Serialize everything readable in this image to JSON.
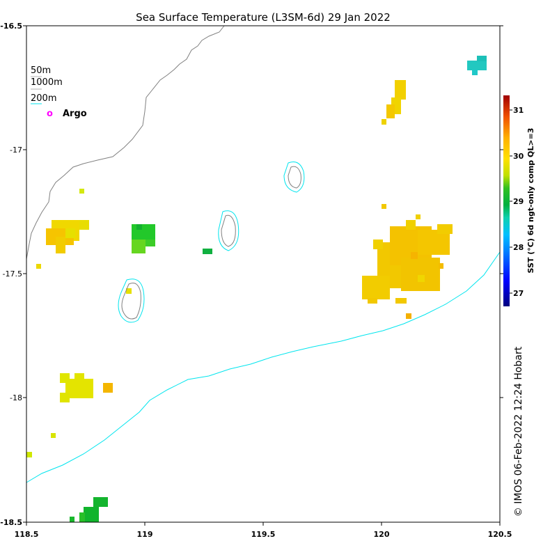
{
  "title": "Sea Surface Temperature (L3SM-6d) 29 Jan 2022",
  "axes": {
    "x_ticks": [
      "118.5",
      "119",
      "119.5",
      "120",
      "120.5"
    ],
    "y_ticks": [
      "-16.5",
      "-17",
      "-17.5",
      "-18",
      "-18.5"
    ],
    "x_range": [
      118.5,
      120.5
    ],
    "y_range": [
      -18.5,
      -16.5
    ]
  },
  "legend": {
    "items": [
      "50m",
      "1000m",
      "200m"
    ],
    "argo_marker": "o",
    "argo_label": "Argo",
    "argo_color": "#ff00ff",
    "contour_200m_color": "#00e5ee",
    "coast_color": "#808080"
  },
  "colorbar": {
    "label": "SST (°C) 6d ngt-only comp QL>=3",
    "ticks": [
      "31",
      "30",
      "29",
      "28",
      "27"
    ],
    "range": [
      26.6,
      31.5
    ]
  },
  "credit": "© IMOS 06-Feb-2022 12:24 Hobart",
  "chart_data": {
    "type": "heatmap",
    "title": "Sea Surface Temperature (L3SM-6d) 29 Jan 2022",
    "xlabel": "",
    "ylabel": "",
    "xlim": [
      118.5,
      120.5
    ],
    "ylim": [
      -18.5,
      -16.5
    ],
    "units": "°C",
    "cells": [
      {
        "lon": 118.68,
        "lat": -17.36,
        "sst": 29.8
      },
      {
        "lon": 118.73,
        "lat": -17.32,
        "sst": 29.7
      },
      {
        "lon": 118.62,
        "lat": -17.4,
        "sst": 30.2
      },
      {
        "lon": 118.72,
        "lat": -17.29,
        "sst": 29.6
      },
      {
        "lon": 118.55,
        "lat": -17.47,
        "sst": 29.7
      },
      {
        "lon": 118.73,
        "lat": -17.17,
        "sst": 29.5
      },
      {
        "lon": 118.98,
        "lat": -17.38,
        "sst": 28.9
      },
      {
        "lon": 119.27,
        "lat": -17.42,
        "sst": 28.9
      },
      {
        "lon": 118.93,
        "lat": -17.57,
        "sst": 29.7
      },
      {
        "lon": 118.73,
        "lat": -17.97,
        "sst": 29.6
      },
      {
        "lon": 118.84,
        "lat": -17.96,
        "sst": 30.3
      },
      {
        "lon": 118.61,
        "lat": -18.15,
        "sst": 29.6
      },
      {
        "lon": 118.51,
        "lat": -18.23,
        "sst": 29.6
      },
      {
        "lon": 118.78,
        "lat": -18.47,
        "sst": 28.8
      },
      {
        "lon": 120.08,
        "lat": -16.76,
        "sst": 30.0
      },
      {
        "lon": 120.42,
        "lat": -16.66,
        "sst": 28.0
      },
      {
        "lon": 120.02,
        "lat": -17.23,
        "sst": 30.1
      },
      {
        "lon": 120.1,
        "lat": -17.46,
        "sst": 30.0
      },
      {
        "lon": 120.12,
        "lat": -17.67,
        "sst": 30.3
      }
    ],
    "contours": [
      "50m",
      "1000m",
      "200m"
    ],
    "argo_floats": []
  }
}
